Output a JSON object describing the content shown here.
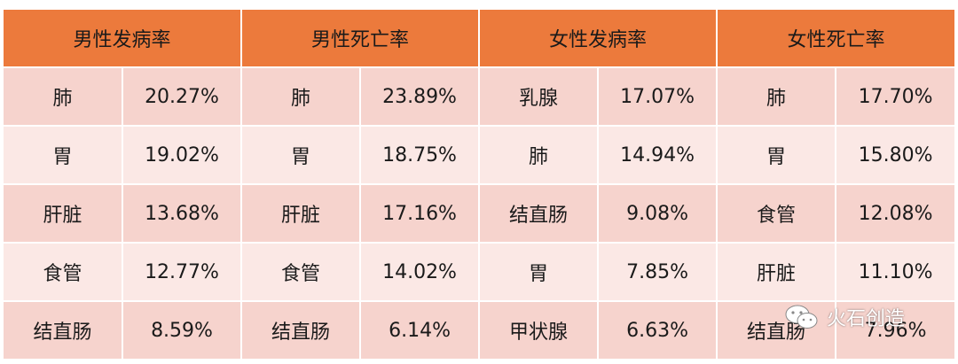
{
  "table": {
    "headers": [
      "男性发病率",
      "男性死亡率",
      "女性发病率",
      "女性死亡率"
    ],
    "rows": [
      [
        [
          "肺",
          "20.27%"
        ],
        [
          "肺",
          "23.89%"
        ],
        [
          "乳腺",
          "17.07%"
        ],
        [
          "肺",
          "17.70%"
        ]
      ],
      [
        [
          "胃",
          "19.02%"
        ],
        [
          "胃",
          "18.75%"
        ],
        [
          "肺",
          "14.94%"
        ],
        [
          "胃",
          "15.80%"
        ]
      ],
      [
        [
          "肝脏",
          "13.68%"
        ],
        [
          "肝脏",
          "17.16%"
        ],
        [
          "结直肠",
          "9.08%"
        ],
        [
          "食管",
          "12.08%"
        ]
      ],
      [
        [
          "食管",
          "12.77%"
        ],
        [
          "食管",
          "14.02%"
        ],
        [
          "胃",
          "7.85%"
        ],
        [
          "肝脏",
          "11.10%"
        ]
      ],
      [
        [
          "结直肠",
          "8.59%"
        ],
        [
          "结直肠",
          "6.14%"
        ],
        [
          "甲状腺",
          "6.63%"
        ],
        [
          "结直肠",
          "7.96%"
        ]
      ]
    ]
  },
  "watermark": {
    "icon": "wechat-icon",
    "text": "火石创造"
  },
  "colors": {
    "header_bg": "#ec7a3c",
    "row_odd_bg": "#f6d3cd",
    "row_even_bg": "#fbe8e5"
  }
}
